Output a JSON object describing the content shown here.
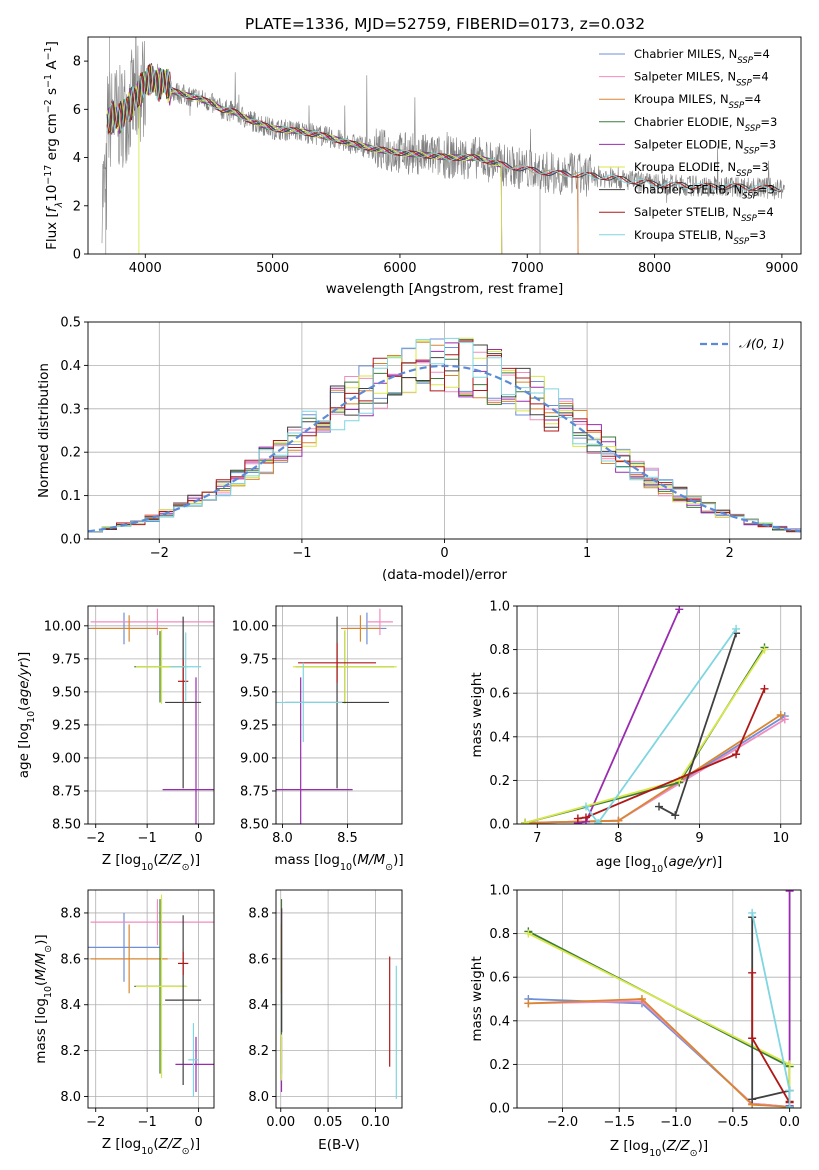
{
  "title": "PLATE=1336, MJD=52759, FIBERID=0173, z=0.032",
  "colors": {
    "Chabrier MILES": "#6f8fd8",
    "Salpeter MILES": "#f08cc0",
    "Kroupa MILES": "#d9862f",
    "Chabrier ELODIE": "#3c7a3c",
    "Salpeter ELODIE": "#9a2bb0",
    "Kroupa ELODIE": "#d8e84a",
    "Chabrier STELIB": "#404040",
    "Salpeter STELIB": "#b01818",
    "Kroupa STELIB": "#7fd6e0",
    "data": "#808080",
    "gauss": "#5b8ad6"
  },
  "chart_data": [
    {
      "id": "spectrum",
      "type": "line",
      "title": "PLATE=1336, MJD=52759, FIBERID=0173, z=0.032",
      "xlabel": "wavelength [Angstrom, rest frame]",
      "ylabel": "Flux [fλ10⁻¹⁷ erg cm⁻² s⁻¹ A⁻¹]",
      "xlim": [
        3550,
        9150
      ],
      "ylim": [
        0,
        9
      ],
      "xticks": [
        "4000",
        "5000",
        "6000",
        "7000",
        "8000",
        "9000"
      ],
      "yticks": [
        "0",
        "2",
        "4",
        "6",
        "8"
      ],
      "grid": false,
      "legend_position": "top-right",
      "legend": [
        {
          "model": "Chabrier MILES",
          "main": "Chabrier MILES, N",
          "sub": "SSP",
          "tail": "=4"
        },
        {
          "model": "Salpeter MILES",
          "main": "Salpeter MILES, N",
          "sub": "SSP",
          "tail": "=4"
        },
        {
          "model": "Kroupa MILES",
          "main": "Kroupa MILES, N",
          "sub": "SSP",
          "tail": "=4"
        },
        {
          "model": "Chabrier ELODIE",
          "main": "Chabrier ELODIE, N",
          "sub": "SSP",
          "tail": "=3"
        },
        {
          "model": "Salpeter ELODIE",
          "main": "Salpeter ELODIE, N",
          "sub": "SSP",
          "tail": "=3"
        },
        {
          "model": "Kroupa ELODIE",
          "main": "Kroupa ELODIE, N",
          "sub": "SSP",
          "tail": "=3"
        },
        {
          "model": "Chabrier STELIB",
          "main": "Chabrier STELIB, N",
          "sub": "SSP",
          "tail": "=3"
        },
        {
          "model": "Salpeter STELIB",
          "main": "Salpeter STELIB, N",
          "sub": "SSP",
          "tail": "=4"
        },
        {
          "model": "Kroupa STELIB",
          "main": "Kroupa STELIB, N",
          "sub": "SSP",
          "tail": "=3"
        }
      ],
      "model_continuum": {
        "x": [
          3700,
          3750,
          3800,
          3850,
          3900,
          3950,
          4000,
          4050,
          4100,
          4150,
          4200,
          4300,
          4400,
          4500,
          4600,
          4700,
          4800,
          4900,
          5000,
          5200,
          5400,
          5600,
          5800,
          6000,
          6200,
          6400,
          6600,
          6800,
          7000,
          7200,
          7400,
          7600,
          7800,
          8000,
          8200,
          8400,
          8600,
          8800,
          9000
        ],
        "y": [
          5.5,
          5.7,
          5.6,
          6.0,
          6.3,
          6.7,
          7.1,
          7.3,
          7.0,
          7.2,
          6.8,
          6.6,
          6.5,
          6.3,
          6.0,
          5.9,
          5.6,
          5.4,
          5.2,
          5.1,
          4.9,
          4.6,
          4.35,
          4.2,
          4.1,
          4.0,
          4.0,
          3.7,
          3.5,
          3.35,
          3.3,
          3.2,
          3.05,
          2.9,
          2.85,
          2.8,
          2.8,
          2.75,
          2.7
        ]
      },
      "series_cutoffs": {
        "Chabrier MILES": 7400,
        "Salpeter MILES": 7400,
        "Kroupa MILES": 7400,
        "Chabrier ELODIE": 6800,
        "Salpeter ELODIE": 6800,
        "Kroupa ELODIE": 6800,
        "Chabrier STELIB": 9000,
        "Salpeter STELIB": 9000,
        "Kroupa STELIB": 9000
      }
    },
    {
      "id": "residuals",
      "type": "area",
      "xlabel": "(data-model)/error",
      "ylabel": "Normed distribution",
      "xlim": [
        -2.5,
        2.5
      ],
      "ylim": [
        0,
        0.5
      ],
      "xticks": [
        "−2",
        "−1",
        "0",
        "1",
        "2"
      ],
      "yticks": [
        "0.0",
        "0.1",
        "0.2",
        "0.3",
        "0.4",
        "0.5"
      ],
      "grid": true,
      "legend_position": "top-right",
      "legend": [
        {
          "name": "𝒩(0, 1)",
          "style": "dashed"
        }
      ],
      "bins": {
        "start": -2.5,
        "width": 0.1,
        "count": 50
      }
    },
    {
      "id": "age_vs_Z",
      "type": "scatter",
      "xlabel": "Z [log10(Z/Z⊙)]",
      "ylabel": "age [log10(age/yr)]",
      "xlim": [
        -2.15,
        0.3
      ],
      "ylim": [
        8.5,
        10.15
      ],
      "xticks": [
        "−2",
        "−1",
        "0"
      ],
      "yticks": [
        "8.50",
        "8.75",
        "9.00",
        "9.25",
        "9.50",
        "9.75",
        "10.00"
      ],
      "grid": true,
      "crosses": [
        {
          "model": "Chabrier MILES",
          "x": -1.45,
          "xerr": 0.7,
          "y": 9.98,
          "yerr": 0.12
        },
        {
          "model": "Salpeter MILES",
          "x": -0.8,
          "xerr": 1.3,
          "y": 10.03,
          "yerr": 0.1
        },
        {
          "model": "Kroupa MILES",
          "x": -1.35,
          "xerr": 0.75,
          "y": 9.98,
          "yerr": 0.1
        },
        {
          "model": "Chabrier ELODIE",
          "x": -0.75,
          "xerr": 0.5,
          "y": 9.69,
          "yerr": 0.27
        },
        {
          "model": "Salpeter ELODIE",
          "x": -0.05,
          "xerr": 0.65,
          "y": 8.76,
          "yerr": 0.85
        },
        {
          "model": "Kroupa ELODIE",
          "x": -0.72,
          "xerr": 0.5,
          "y": 9.69,
          "yerr": 0.28
        },
        {
          "model": "Chabrier STELIB",
          "x": -0.3,
          "xerr": 0.35,
          "y": 9.42,
          "yerr": 0.65
        },
        {
          "model": "Salpeter STELIB",
          "x": -0.3,
          "xerr": 0.1,
          "y": 9.58,
          "yerr": 0.16
        },
        {
          "model": "Kroupa STELIB",
          "x": -0.25,
          "xerr": 0.3,
          "y": 9.69,
          "yerr": 0.26
        }
      ]
    },
    {
      "id": "age_vs_mass",
      "type": "scatter",
      "xlabel": "mass [log10(M/M⊙)]",
      "ylabel": "",
      "xlim": [
        7.95,
        8.92
      ],
      "ylim": [
        8.5,
        10.15
      ],
      "xticks": [
        "8.0",
        "8.5"
      ],
      "yticks": [
        "8.50",
        "8.75",
        "9.00",
        "9.25",
        "9.50",
        "9.75",
        "10.00"
      ],
      "grid": true,
      "crosses": [
        {
          "model": "Chabrier MILES",
          "x": 8.65,
          "xerr": 0.15,
          "y": 9.98,
          "yerr": 0.12
        },
        {
          "model": "Salpeter MILES",
          "x": 8.75,
          "xerr": 0.1,
          "y": 10.03,
          "yerr": 0.1
        },
        {
          "model": "Kroupa MILES",
          "x": 8.6,
          "xerr": 0.15,
          "y": 9.98,
          "yerr": 0.1
        },
        {
          "model": "Chabrier ELODIE",
          "x": 8.48,
          "xerr": 0.38,
          "y": 9.69,
          "yerr": 0.27
        },
        {
          "model": "Salpeter ELODIE",
          "x": 8.14,
          "xerr": 0.4,
          "y": 8.76,
          "yerr": 0.85
        },
        {
          "model": "Kroupa ELODIE",
          "x": 8.48,
          "xerr": 0.4,
          "y": 9.69,
          "yerr": 0.28
        },
        {
          "model": "Chabrier STELIB",
          "x": 8.42,
          "xerr": 0.4,
          "y": 9.42,
          "yerr": 0.65
        },
        {
          "model": "Salpeter STELIB",
          "x": 8.42,
          "xerr": 0.3,
          "y": 9.72,
          "yerr": 0.15
        },
        {
          "model": "Kroupa STELIB",
          "x": 8.16,
          "xerr": 0.3,
          "y": 9.42,
          "yerr": 0.3
        }
      ]
    },
    {
      "id": "weight_vs_age",
      "type": "line",
      "xlabel": "age [log10(age/yr)]",
      "ylabel": "mass weight",
      "xlim": [
        6.75,
        10.25
      ],
      "ylim": [
        0,
        1.0
      ],
      "xticks": [
        "7",
        "8",
        "9",
        "10"
      ],
      "yticks": [
        "0.0",
        "0.2",
        "0.4",
        "0.6",
        "0.8",
        "1.0"
      ],
      "grid": true,
      "series": [
        {
          "model": "Chabrier MILES",
          "x": [
            6.85,
            8.0,
            10.05
          ],
          "y": [
            0.005,
            0.015,
            0.495
          ]
        },
        {
          "model": "Salpeter MILES",
          "x": [
            6.85,
            8.0,
            10.05
          ],
          "y": [
            0.005,
            0.015,
            0.48
          ]
        },
        {
          "model": "Kroupa MILES",
          "x": [
            6.85,
            8.0,
            10.0
          ],
          "y": [
            0.005,
            0.015,
            0.5
          ]
        },
        {
          "model": "Chabrier ELODIE",
          "x": [
            6.85,
            8.75,
            9.8
          ],
          "y": [
            0.005,
            0.19,
            0.81
          ]
        },
        {
          "model": "Salpeter ELODIE",
          "x": [
            7.5,
            7.6,
            8.75
          ],
          "y": [
            0.005,
            0.01,
            0.985
          ]
        },
        {
          "model": "Kroupa ELODIE",
          "x": [
            6.85,
            8.75,
            9.8
          ],
          "y": [
            0.005,
            0.2,
            0.8
          ]
        },
        {
          "model": "Chabrier STELIB",
          "x": [
            8.5,
            8.7,
            9.45
          ],
          "y": [
            0.08,
            0.04,
            0.875
          ]
        },
        {
          "model": "Salpeter STELIB",
          "x": [
            7.5,
            7.6,
            9.45,
            9.8
          ],
          "y": [
            0.025,
            0.03,
            0.32,
            0.62
          ]
        },
        {
          "model": "Kroupa STELIB",
          "x": [
            7.6,
            7.75,
            9.45
          ],
          "y": [
            0.08,
            0.005,
            0.895
          ]
        }
      ]
    },
    {
      "id": "mass_vs_Z",
      "type": "scatter",
      "xlabel": "Z [log10(Z/Z⊙)]",
      "ylabel": "mass [log10(M/M⊙)]",
      "xlim": [
        -2.15,
        0.3
      ],
      "ylim": [
        7.95,
        8.9
      ],
      "xticks": [
        "−2",
        "−1",
        "0"
      ],
      "yticks": [
        "8.0",
        "8.2",
        "8.4",
        "8.6",
        "8.8"
      ],
      "grid": true,
      "crosses": [
        {
          "model": "Chabrier MILES",
          "x": -1.45,
          "xerr": 0.7,
          "y": 8.65,
          "yerr": 0.15
        },
        {
          "model": "Salpeter MILES",
          "x": -0.8,
          "xerr": 1.3,
          "y": 8.76,
          "yerr": 0.1
        },
        {
          "model": "Kroupa MILES",
          "x": -1.35,
          "xerr": 0.75,
          "y": 8.6,
          "yerr": 0.15
        },
        {
          "model": "Chabrier ELODIE",
          "x": -0.75,
          "xerr": 0.5,
          "y": 8.48,
          "yerr": 0.38
        },
        {
          "model": "Salpeter ELODIE",
          "x": -0.05,
          "xerr": 0.4,
          "y": 8.14,
          "yerr": 0.12
        },
        {
          "model": "Kroupa ELODIE",
          "x": -0.72,
          "xerr": 0.5,
          "y": 8.48,
          "yerr": 0.4
        },
        {
          "model": "Chabrier STELIB",
          "x": -0.3,
          "xerr": 0.35,
          "y": 8.42,
          "yerr": 0.37
        },
        {
          "model": "Salpeter STELIB",
          "x": -0.3,
          "xerr": 0.1,
          "y": 8.58,
          "yerr": 0.05
        },
        {
          "model": "Kroupa STELIB",
          "x": -0.1,
          "xerr": 0.1,
          "y": 8.16,
          "yerr": 0.16
        }
      ]
    },
    {
      "id": "mass_vs_ebv",
      "type": "scatter",
      "xlabel": "E(B-V)",
      "ylabel": "",
      "xlim": [
        -0.005,
        0.128
      ],
      "ylim": [
        7.95,
        8.9
      ],
      "xticks": [
        "0.00",
        "0.05",
        "0.10"
      ],
      "yticks": [
        "8.0",
        "8.2",
        "8.4",
        "8.6",
        "8.8"
      ],
      "grid": true,
      "crosses": [
        {
          "model": "Chabrier MILES",
          "x": 0.0005,
          "xerr": 0.0,
          "y": 8.65,
          "yerr": 0.15
        },
        {
          "model": "Salpeter MILES",
          "x": 0.0005,
          "xerr": 0.0,
          "y": 8.76,
          "yerr": 0.1
        },
        {
          "model": "Kroupa MILES",
          "x": 0.0005,
          "xerr": 0.0,
          "y": 8.6,
          "yerr": 0.15
        },
        {
          "model": "Chabrier ELODIE",
          "x": 0.0008,
          "xerr": 0.0,
          "y": 8.48,
          "yerr": 0.38
        },
        {
          "model": "Salpeter ELODIE",
          "x": 0.0008,
          "xerr": 0.0,
          "y": 8.14,
          "yerr": 0.12
        },
        {
          "model": "Kroupa ELODIE",
          "x": 0.0008,
          "xerr": 0.0,
          "y": 8.17,
          "yerr": 0.1
        },
        {
          "model": "Chabrier STELIB",
          "x": 0.001,
          "xerr": 0.0,
          "y": 8.55,
          "yerr": 0.27
        },
        {
          "model": "Salpeter STELIB",
          "x": 0.115,
          "xerr": 0.0,
          "y": 8.37,
          "yerr": 0.24
        },
        {
          "model": "Kroupa STELIB",
          "x": 0.122,
          "xerr": 0.0,
          "y": 8.28,
          "yerr": 0.29
        }
      ]
    },
    {
      "id": "weight_vs_Z",
      "type": "line",
      "xlabel": "Z [log10(Z/Z⊙)]",
      "ylabel": "mass weight",
      "xlim": [
        -2.4,
        0.1
      ],
      "ylim": [
        0,
        1.0
      ],
      "xticks": [
        "−2.0",
        "−1.5",
        "−1.0",
        "−0.5",
        "0.0"
      ],
      "yticks": [
        "0.0",
        "0.2",
        "0.4",
        "0.6",
        "0.8",
        "1.0"
      ],
      "grid": true,
      "series": [
        {
          "model": "Chabrier MILES",
          "x": [
            -2.3,
            -1.3,
            -0.33,
            0.0
          ],
          "y": [
            0.5,
            0.48,
            0.02,
            0.005
          ]
        },
        {
          "model": "Salpeter MILES",
          "x": [
            -2.3,
            -1.3,
            -0.33,
            0.0
          ],
          "y": [
            0.48,
            0.49,
            0.02,
            0.005
          ]
        },
        {
          "model": "Kroupa MILES",
          "x": [
            -2.3,
            -1.3,
            -0.33,
            0.0
          ],
          "y": [
            0.48,
            0.5,
            0.015,
            0.005
          ]
        },
        {
          "model": "Chabrier ELODIE",
          "x": [
            -2.3,
            0.0,
            0.0
          ],
          "y": [
            0.81,
            0.19,
            0.005
          ]
        },
        {
          "model": "Salpeter ELODIE",
          "x": [
            0.0,
            0.0,
            0.0
          ],
          "y": [
            0.995,
            0.01,
            0.005
          ]
        },
        {
          "model": "Kroupa ELODIE",
          "x": [
            -2.3,
            0.0,
            0.0
          ],
          "y": [
            0.8,
            0.2,
            0.005
          ]
        },
        {
          "model": "Chabrier STELIB",
          "x": [
            -0.33,
            -0.33,
            0.0,
            0.0
          ],
          "y": [
            0.875,
            0.04,
            0.08,
            0.005
          ]
        },
        {
          "model": "Salpeter STELIB",
          "x": [
            -0.33,
            -0.33,
            0.0,
            0.0
          ],
          "y": [
            0.62,
            0.32,
            0.025,
            0.03
          ]
        },
        {
          "model": "Kroupa STELIB",
          "x": [
            -0.33,
            0.0,
            0.0
          ],
          "y": [
            0.895,
            0.08,
            0.005
          ]
        }
      ]
    }
  ]
}
